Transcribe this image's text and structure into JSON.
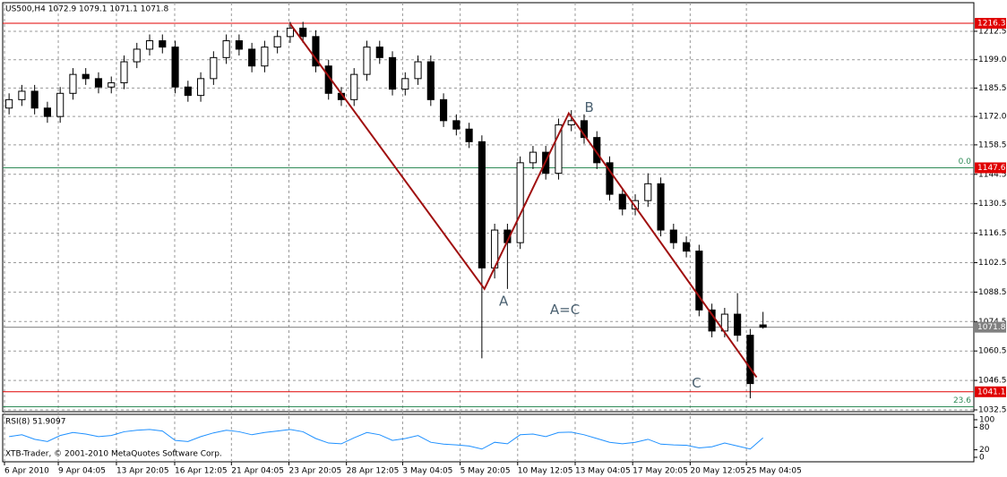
{
  "chart_data": [
    {
      "type": "candlestick",
      "title": "US500,H4  1072.9 1079.1 1071.1 1071.8",
      "footer": "XTB-Trader, © 2001-2010 MetaQuotes Software Corp.",
      "open": [
        1176,
        1180,
        1184,
        1176,
        1172,
        1183,
        1192,
        1190,
        1186,
        1188,
        1198,
        1204,
        1208,
        1205,
        1186,
        1182,
        1190,
        1200,
        1208,
        1204,
        1196,
        1205,
        1210,
        1214,
        1210,
        1196,
        1183,
        1180,
        1192,
        1205,
        1200,
        1185,
        1190,
        1198,
        1180,
        1170,
        1166,
        1160,
        1100,
        1118,
        1112,
        1150,
        1155,
        1145,
        1168,
        1170,
        1162,
        1150,
        1135,
        1128,
        1132,
        1140,
        1118,
        1112,
        1108,
        1080,
        1070,
        1078,
        1068,
        1072.9
      ],
      "high": [
        1183,
        1187,
        1187,
        1179,
        1186,
        1195,
        1195,
        1193,
        1191,
        1201,
        1207,
        1211,
        1211,
        1208,
        1189,
        1193,
        1203,
        1211,
        1211,
        1207,
        1208,
        1213,
        1217,
        1217,
        1213,
        1199,
        1186,
        1195,
        1208,
        1208,
        1203,
        1193,
        1201,
        1201,
        1183,
        1173,
        1169,
        1163,
        1121,
        1121,
        1153,
        1158,
        1158,
        1171,
        1175,
        1173,
        1165,
        1153,
        1138,
        1135,
        1145,
        1143,
        1121,
        1115,
        1111,
        1083,
        1081,
        1088,
        1071,
        1079.1
      ],
      "low": [
        1173,
        1177,
        1173,
        1169,
        1169,
        1180,
        1187,
        1183,
        1183,
        1185,
        1195,
        1201,
        1202,
        1183,
        1179,
        1179,
        1187,
        1197,
        1201,
        1193,
        1193,
        1202,
        1207,
        1207,
        1193,
        1180,
        1177,
        1177,
        1189,
        1197,
        1182,
        1182,
        1187,
        1177,
        1167,
        1163,
        1157,
        1057,
        1095,
        1090,
        1109,
        1147,
        1142,
        1142,
        1165,
        1159,
        1147,
        1132,
        1125,
        1125,
        1129,
        1115,
        1109,
        1105,
        1077,
        1067,
        1067,
        1065,
        1038,
        1071.1
      ],
      "close": [
        1180,
        1184,
        1176,
        1172,
        1183,
        1192,
        1190,
        1186,
        1188,
        1198,
        1204,
        1208,
        1205,
        1186,
        1182,
        1190,
        1200,
        1208,
        1204,
        1196,
        1205,
        1210,
        1214,
        1210,
        1196,
        1183,
        1180,
        1192,
        1205,
        1200,
        1185,
        1190,
        1198,
        1180,
        1170,
        1166,
        1160,
        1100,
        1118,
        1112,
        1150,
        1155,
        1145,
        1168,
        1170,
        1162,
        1150,
        1135,
        1128,
        1132,
        1140,
        1118,
        1112,
        1108,
        1080,
        1070,
        1078,
        1068,
        1045,
        1071.8
      ],
      "xlim": [
        -0.5,
        75.5
      ],
      "ylim": [
        1032.5,
        1226.1
      ],
      "yticks": [
        1212.5,
        {
          "value": 1199,
          "label": "1199.0"
        },
        1185.5,
        {
          "value": 1172,
          "label": "1172.0"
        },
        1158.5,
        1144.5,
        1130.5,
        1116.5,
        1102.5,
        1088.5,
        1074.5,
        1060.5,
        1046.5,
        1032.5
      ],
      "xticks": [
        {
          "value": -0.36,
          "label": "6 Apr 2010"
        },
        {
          "value": 3.85,
          "label": "9 Apr 04:05"
        },
        {
          "value": 8.4,
          "label": "13 Apr 20:05"
        },
        {
          "value": 12.96,
          "label": "16 Apr 12:05"
        },
        {
          "value": 17.4,
          "label": "21 Apr 04:05"
        },
        {
          "value": 21.9,
          "label": "23 Apr 20:05"
        },
        {
          "value": 26.4,
          "label": "28 Apr 12:05"
        },
        {
          "value": 30.8,
          "label": "3 May 04:05"
        },
        {
          "value": 35.3,
          "label": "5 May 20:05"
        },
        {
          "value": 39.8,
          "label": "10 May 12:05"
        },
        {
          "value": 44.3,
          "label": "13 May 04:05"
        },
        {
          "value": 48.8,
          "label": "17 May 20:05"
        },
        {
          "value": 53.3,
          "label": "20 May 12:05"
        },
        {
          "value": 57.7,
          "label": "25 May 04:05"
        }
      ],
      "grid": true,
      "levels": [
        {
          "value": 1216.3,
          "label": "1216.3",
          "color": "#e00000"
        },
        {
          "value": 1147.6,
          "label": "1147.6",
          "color": "#e00000"
        },
        {
          "value": 1041.1,
          "label": "1041.1",
          "color": "#e00000"
        },
        {
          "value": 1071.8,
          "label": "1071.8",
          "color": "#808080"
        }
      ],
      "fib_levels": [
        {
          "value": 1147.6,
          "label": "0.0"
        },
        {
          "value": 1034,
          "label": "23.6"
        }
      ],
      "zigzag": {
        "color": "#a01010",
        "x": [
          22,
          37.2,
          43.8,
          58.5
        ],
        "y": [
          1216,
          1090,
          1173.5,
          1048
        ]
      },
      "annotations": [
        {
          "text": "A",
          "x": 38.7,
          "y": 1084
        },
        {
          "text": "B",
          "x": 45.4,
          "y": 1176
        },
        {
          "text": "C",
          "x": 53.8,
          "y": 1045
        },
        {
          "text": "A=C",
          "x": 43.5,
          "y": 1080
        }
      ]
    },
    {
      "type": "line",
      "title": "RSI(8) 51.9097",
      "color": "#1e90ff",
      "values": [
        55,
        60,
        48,
        42,
        58,
        66,
        62,
        55,
        58,
        68,
        72,
        74,
        70,
        45,
        42,
        55,
        65,
        72,
        68,
        60,
        66,
        70,
        74,
        68,
        50,
        38,
        36,
        52,
        66,
        60,
        45,
        50,
        58,
        40,
        35,
        33,
        30,
        22,
        40,
        36,
        60,
        62,
        55,
        66,
        67,
        60,
        50,
        40,
        36,
        40,
        48,
        35,
        33,
        32,
        25,
        28,
        38,
        30,
        22,
        51.9097
      ],
      "ylim": [
        0,
        100
      ],
      "yticks": [
        100,
        80,
        20,
        0
      ]
    }
  ]
}
